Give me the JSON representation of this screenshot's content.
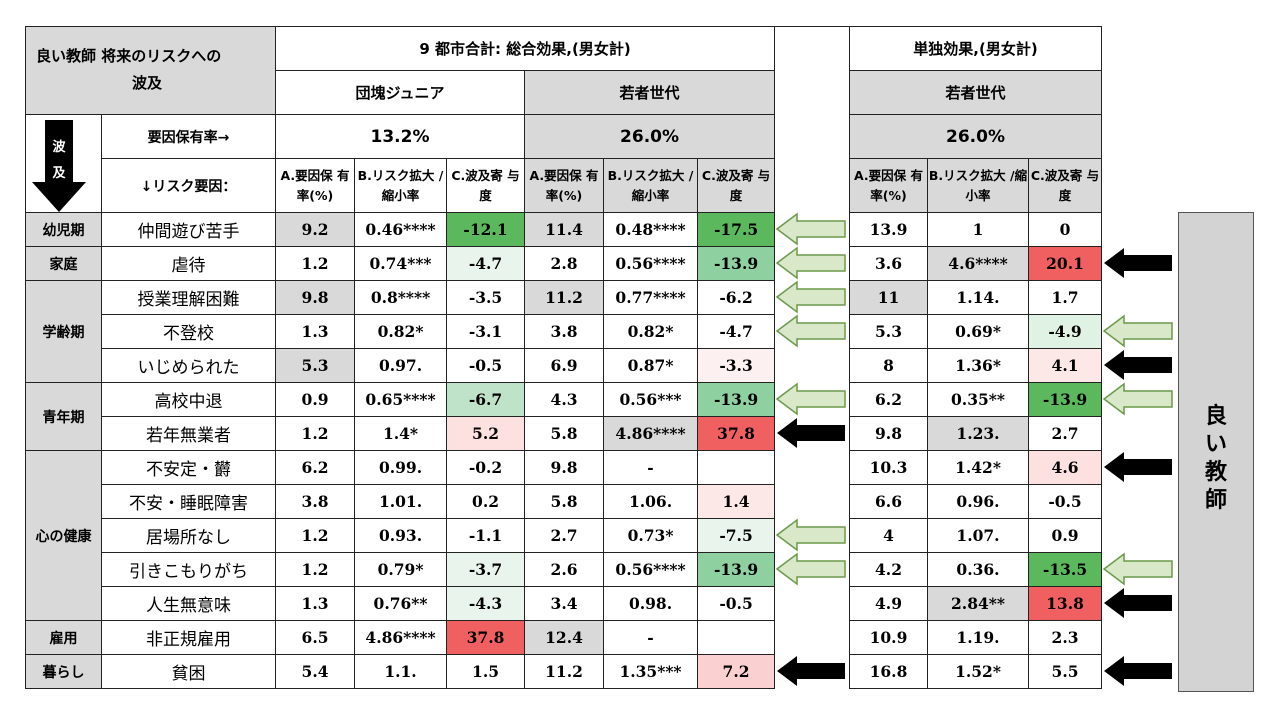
{
  "header": {
    "title_line1": "良い教師 将来のリスクへの",
    "title_line2": "波及",
    "total_effect": "9 都市合計: 総合効果,(男女計)",
    "single_effect": "単独効果,(男女計)",
    "group_junior": "団塊ジュニア",
    "group_young": "若者世代",
    "group_young_single": "若者世代"
  },
  "factor_row": {
    "label": "要因保有率→",
    "rate_junior": "13.2%",
    "rate_young": "26.0%",
    "rate_young_single": "26.0%",
    "spill_char1": "波",
    "spill_char2": "及"
  },
  "column_headers": {
    "risk_label": "↓リスク要因：",
    "a": "A.要因保 有率(%)",
    "b": "B.リスク拡大 /縮小率",
    "c": "C.波及寄 与度"
  },
  "stages": [
    "幼児期",
    "家庭",
    "学齢期",
    "青年期",
    "心の健康",
    "雇用",
    "暮らし"
  ],
  "rows": [
    {
      "risk": "仲間遊び苦手",
      "jA": "9.2",
      "jB": "0.46****",
      "jC": "-12.1",
      "yA": "11.4",
      "yB": "0.48****",
      "yC": "-17.5",
      "sA": "13.9",
      "sB": "1",
      "sC": "0"
    },
    {
      "risk": "虐待",
      "jA": "1.2",
      "jB": "0.74***",
      "jC": "-4.7",
      "yA": "2.8",
      "yB": "0.56****",
      "yC": "-13.9",
      "sA": "3.6",
      "sB": "4.6****",
      "sC": "20.1"
    },
    {
      "risk": "授業理解困難",
      "jA": "9.8",
      "jB": "0.8****",
      "jC": "-3.5",
      "yA": "11.2",
      "yB": "0.77****",
      "yC": "-6.2",
      "sA": "11",
      "sB": "1.14.",
      "sC": "1.7"
    },
    {
      "risk": "不登校",
      "jA": "1.3",
      "jB": "0.82*",
      "jC": "-3.1",
      "yA": "3.8",
      "yB": "0.82*",
      "yC": "-4.7",
      "sA": "5.3",
      "sB": "0.69*",
      "sC": "-4.9"
    },
    {
      "risk": "いじめられた",
      "jA": "5.3",
      "jB": "0.97.",
      "jC": "-0.5",
      "yA": "6.9",
      "yB": "0.87*",
      "yC": "-3.3",
      "sA": "8",
      "sB": "1.36*",
      "sC": "4.1"
    },
    {
      "risk": "高校中退",
      "jA": "0.9",
      "jB": "0.65****",
      "jC": "-6.7",
      "yA": "4.3",
      "yB": "0.56***",
      "yC": "-13.9",
      "sA": "6.2",
      "sB": "0.35**",
      "sC": "-13.9"
    },
    {
      "risk": "若年無業者",
      "jA": "1.2",
      "jB": "1.4*",
      "jC": "5.2",
      "yA": "5.8",
      "yB": "4.86****",
      "yC": "37.8",
      "sA": "9.8",
      "sB": "1.23.",
      "sC": "2.7"
    },
    {
      "risk": "不安定・欝",
      "jA": "6.2",
      "jB": "0.99.",
      "jC": "-0.2",
      "yA": "9.8",
      "yB": "-",
      "yC": "",
      "sA": "10.3",
      "sB": "1.42*",
      "sC": "4.6"
    },
    {
      "risk": "不安・睡眠障害",
      "jA": "3.8",
      "jB": "1.01.",
      "jC": "0.2",
      "yA": "5.8",
      "yB": "1.06.",
      "yC": "1.4",
      "sA": "6.6",
      "sB": "0.96.",
      "sC": "-0.5"
    },
    {
      "risk": "居場所なし",
      "jA": "1.2",
      "jB": "0.93.",
      "jC": "-1.1",
      "yA": "2.7",
      "yB": "0.73*",
      "yC": "-7.5",
      "sA": "4",
      "sB": "1.07.",
      "sC": "0.9"
    },
    {
      "risk": "引きこもりがち",
      "jA": "1.2",
      "jB": "0.79*",
      "jC": "-3.7",
      "yA": "2.6",
      "yB": "0.56****",
      "yC": "-13.9",
      "sA": "4.2",
      "sB": "0.36.",
      "sC": "-13.5"
    },
    {
      "risk": "人生無意味",
      "jA": "1.3",
      "jB": "0.76**",
      "jC": "-4.3",
      "yA": "3.4",
      "yB": "0.98.",
      "yC": "-0.5",
      "sA": "4.9",
      "sB": "2.84**",
      "sC": "13.8"
    },
    {
      "risk": "非正規雇用",
      "jA": "6.5",
      "jB": "4.86****",
      "jC": "37.8",
      "yA": "12.4",
      "yB": "-",
      "yC": "",
      "sA": "10.9",
      "sB": "1.19.",
      "sC": "2.3"
    },
    {
      "risk": "貧困",
      "jA": "5.4",
      "jB": "1.1.",
      "jC": "1.5",
      "yA": "11.2",
      "yB": "1.35***",
      "yC": "7.2",
      "sA": "16.8",
      "sB": "1.52*",
      "sC": "5.5"
    }
  ],
  "teacher_label": "良\nい\n教\n師",
  "colors": {
    "header_gray": "#d9d9d9",
    "arrow_green_fill": "#d8e8c8",
    "arrow_green_stroke": "#6a9a4a",
    "arrow_black": "#000000"
  }
}
